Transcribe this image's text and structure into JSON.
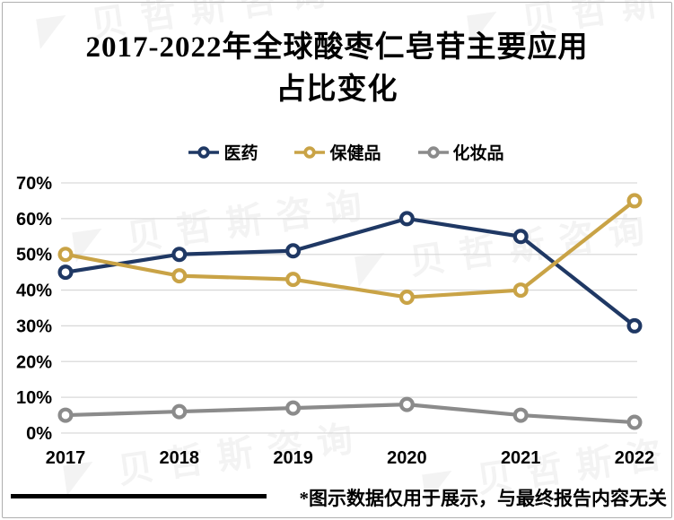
{
  "title": {
    "line1": "2017-2022年全球酸枣仁皂苷主要应用",
    "line2": "占比变化"
  },
  "watermark": {
    "logo": "◤",
    "text": "贝哲斯咨询"
  },
  "footer": {
    "note": "*图示数据仅用于展示，与最终报告内容无关"
  },
  "colors": {
    "series_blue": "#1F3864",
    "series_gold": "#C9A346",
    "series_gray": "#8B8B8B",
    "gridline": "#D9D9D9",
    "card_border": "#AFAFAF",
    "text": "#000000"
  },
  "chart_data": {
    "type": "line",
    "title": "2017-2022年全球酸枣仁皂苷主要应用占比变化",
    "categories": [
      "2017",
      "2018",
      "2019",
      "2020",
      "2021",
      "2022"
    ],
    "series": [
      {
        "name": "医药",
        "color": "#1F3864",
        "values": [
          45,
          50,
          51,
          60,
          55,
          30
        ]
      },
      {
        "name": "保健品",
        "color": "#C9A346",
        "values": [
          50,
          44,
          43,
          38,
          40,
          65
        ]
      },
      {
        "name": "化妆品",
        "color": "#8B8B8B",
        "values": [
          5,
          6,
          7,
          8,
          5,
          3
        ]
      }
    ],
    "ylim": [
      0,
      70
    ],
    "ytick_step": 10,
    "ytick_suffix": "%",
    "grid": "horizontal",
    "gridline_color": "#D9D9D9",
    "legend_position": "top",
    "marker": "open-circle"
  }
}
